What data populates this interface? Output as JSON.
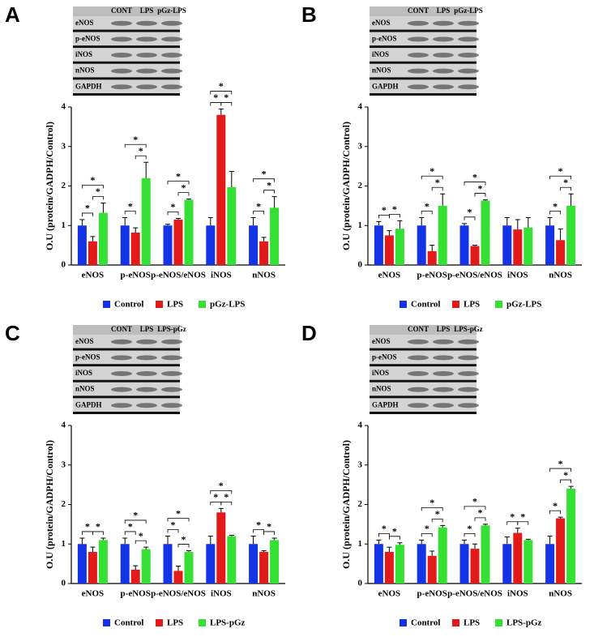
{
  "chart_data": [
    {
      "type": "bar",
      "panel": "A",
      "blot": {
        "lanes": [
          "CONT",
          "LPS",
          "pGz-LPS"
        ],
        "rows": [
          "eNOS",
          "p-eNOS",
          "iNOS",
          "nNOS",
          "GAPDH"
        ]
      },
      "ylabel": "O.U (protein/GADPH/Control)",
      "categories": [
        "eNOS",
        "p-eNOS",
        "p-eNOS/eNOS",
        "iNOS",
        "nNOS"
      ],
      "ylim": [
        0,
        4
      ],
      "yticks": [
        0,
        1,
        2,
        3,
        4
      ],
      "series": [
        {
          "name": "Control",
          "color": "#1533e6",
          "values": [
            1.0,
            1.0,
            1.0,
            1.0,
            1.0
          ],
          "errors": [
            0.15,
            0.2,
            0.03,
            0.2,
            0.2
          ]
        },
        {
          "name": "LPS",
          "color": "#e31a1a",
          "values": [
            0.6,
            0.82,
            1.15,
            3.8,
            0.6
          ],
          "errors": [
            0.12,
            0.12,
            0.03,
            0.15,
            0.1
          ]
        },
        {
          "name": "pGz-LPS",
          "color": "#35e035",
          "values": [
            1.32,
            2.2,
            1.65,
            1.97,
            1.45
          ],
          "errors": [
            0.25,
            0.4,
            0.02,
            0.4,
            0.28
          ]
        }
      ],
      "significance": [
        {
          "category": "eNOS",
          "pair": [
            "Control",
            "LPS"
          ],
          "label": "*"
        },
        {
          "category": "eNOS",
          "pair": [
            "LPS",
            "pGz-LPS"
          ],
          "label": "*"
        },
        {
          "category": "eNOS",
          "pair": [
            "Control",
            "pGz-LPS"
          ],
          "label": "*"
        },
        {
          "category": "p-eNOS",
          "pair": [
            "Control",
            "LPS"
          ],
          "label": "*"
        },
        {
          "category": "p-eNOS",
          "pair": [
            "LPS",
            "pGz-LPS"
          ],
          "label": "*"
        },
        {
          "category": "p-eNOS",
          "pair": [
            "Control",
            "pGz-LPS"
          ],
          "label": "*"
        },
        {
          "category": "p-eNOS/eNOS",
          "pair": [
            "Control",
            "LPS"
          ],
          "label": "*"
        },
        {
          "category": "p-eNOS/eNOS",
          "pair": [
            "LPS",
            "pGz-LPS"
          ],
          "label": "*"
        },
        {
          "category": "p-eNOS/eNOS",
          "pair": [
            "Control",
            "pGz-LPS"
          ],
          "label": "*"
        },
        {
          "category": "iNOS",
          "pair": [
            "Control",
            "LPS"
          ],
          "label": "*"
        },
        {
          "category": "iNOS",
          "pair": [
            "LPS",
            "pGz-LPS"
          ],
          "label": "*"
        },
        {
          "category": "iNOS",
          "pair": [
            "Control",
            "pGz-LPS"
          ],
          "label": "*"
        },
        {
          "category": "nNOS",
          "pair": [
            "Control",
            "LPS"
          ],
          "label": "*"
        },
        {
          "category": "nNOS",
          "pair": [
            "LPS",
            "pGz-LPS"
          ],
          "label": "*"
        },
        {
          "category": "nNOS",
          "pair": [
            "Control",
            "pGz-LPS"
          ],
          "label": "*"
        }
      ]
    },
    {
      "type": "bar",
      "panel": "B",
      "blot": {
        "lanes": [
          "CONT",
          "LPS",
          "pGz-LPS"
        ],
        "rows": [
          "eNOS",
          "p-eNOS",
          "iNOS",
          "nNOS",
          "GAPDH"
        ]
      },
      "ylabel": "O.U (protein/GADPH/Control)",
      "categories": [
        "eNOS",
        "p-eNOS",
        "p-eNOS/eNOS",
        "iNOS",
        "nNOS"
      ],
      "ylim": [
        0,
        4
      ],
      "yticks": [
        0,
        1,
        2,
        3,
        4
      ],
      "series": [
        {
          "name": "Control",
          "color": "#1533e6",
          "values": [
            1.0,
            1.0,
            1.0,
            1.0,
            1.0
          ],
          "errors": [
            0.1,
            0.2,
            0.05,
            0.2,
            0.2
          ]
        },
        {
          "name": "LPS",
          "color": "#e31a1a",
          "values": [
            0.75,
            0.35,
            0.48,
            0.9,
            0.63
          ],
          "errors": [
            0.12,
            0.15,
            0.02,
            0.25,
            0.28
          ]
        },
        {
          "name": "pGz-LPS",
          "color": "#35e035",
          "values": [
            0.92,
            1.5,
            1.63,
            0.95,
            1.5
          ],
          "errors": [
            0.2,
            0.3,
            0.02,
            0.25,
            0.3
          ]
        }
      ],
      "significance": [
        {
          "category": "eNOS",
          "pair": [
            "Control",
            "LPS"
          ],
          "label": "*"
        },
        {
          "category": "eNOS",
          "pair": [
            "LPS",
            "pGz-LPS"
          ],
          "label": "*"
        },
        {
          "category": "p-eNOS",
          "pair": [
            "Control",
            "LPS"
          ],
          "label": "*"
        },
        {
          "category": "p-eNOS",
          "pair": [
            "LPS",
            "pGz-LPS"
          ],
          "label": "*"
        },
        {
          "category": "p-eNOS",
          "pair": [
            "Control",
            "pGz-LPS"
          ],
          "label": "*"
        },
        {
          "category": "p-eNOS/eNOS",
          "pair": [
            "Control",
            "LPS"
          ],
          "label": "*"
        },
        {
          "category": "p-eNOS/eNOS",
          "pair": [
            "LPS",
            "pGz-LPS"
          ],
          "label": "*"
        },
        {
          "category": "p-eNOS/eNOS",
          "pair": [
            "Control",
            "pGz-LPS"
          ],
          "label": "*"
        },
        {
          "category": "nNOS",
          "pair": [
            "Control",
            "LPS"
          ],
          "label": "*"
        },
        {
          "category": "nNOS",
          "pair": [
            "LPS",
            "pGz-LPS"
          ],
          "label": "*"
        },
        {
          "category": "nNOS",
          "pair": [
            "Control",
            "pGz-LPS"
          ],
          "label": "*"
        }
      ]
    },
    {
      "type": "bar",
      "panel": "C",
      "blot": {
        "lanes": [
          "CONT",
          "LPS",
          "LPS-pGz"
        ],
        "rows": [
          "eNOS",
          "p-eNOS",
          "iNOS",
          "nNOS",
          "GAPDH"
        ]
      },
      "ylabel": "O.U (protein/GADPH/Control)",
      "categories": [
        "eNOS",
        "p-eNOS",
        "p-eNOS/eNOS",
        "iNOS",
        "nNOS"
      ],
      "ylim": [
        0,
        4
      ],
      "yticks": [
        0,
        1,
        2,
        3,
        4
      ],
      "series": [
        {
          "name": "Control",
          "color": "#1533e6",
          "values": [
            1.0,
            1.0,
            1.0,
            1.0,
            1.0
          ],
          "errors": [
            0.15,
            0.15,
            0.2,
            0.2,
            0.2
          ]
        },
        {
          "name": "LPS",
          "color": "#e31a1a",
          "values": [
            0.8,
            0.35,
            0.32,
            1.8,
            0.8
          ],
          "errors": [
            0.12,
            0.1,
            0.12,
            0.1,
            0.03
          ]
        },
        {
          "name": "LPS-pGz",
          "color": "#35e035",
          "values": [
            1.1,
            0.87,
            0.8,
            1.2,
            1.1
          ],
          "errors": [
            0.05,
            0.05,
            0.03,
            0.02,
            0.05
          ]
        }
      ],
      "significance": [
        {
          "category": "eNOS",
          "pair": [
            "Control",
            "LPS"
          ],
          "label": "*"
        },
        {
          "category": "eNOS",
          "pair": [
            "LPS",
            "LPS-pGz"
          ],
          "label": "*"
        },
        {
          "category": "p-eNOS",
          "pair": [
            "Control",
            "LPS"
          ],
          "label": "*"
        },
        {
          "category": "p-eNOS",
          "pair": [
            "LPS",
            "LPS-pGz"
          ],
          "label": "*"
        },
        {
          "category": "p-eNOS",
          "pair": [
            "Control",
            "LPS-pGz"
          ],
          "label": "*"
        },
        {
          "category": "p-eNOS/eNOS",
          "pair": [
            "Control",
            "LPS"
          ],
          "label": "*"
        },
        {
          "category": "p-eNOS/eNOS",
          "pair": [
            "LPS",
            "LPS-pGz"
          ],
          "label": "*"
        },
        {
          "category": "p-eNOS/eNOS",
          "pair": [
            "Control",
            "LPS-pGz"
          ],
          "label": "*"
        },
        {
          "category": "iNOS",
          "pair": [
            "Control",
            "LPS"
          ],
          "label": "*"
        },
        {
          "category": "iNOS",
          "pair": [
            "LPS",
            "LPS-pGz"
          ],
          "label": "*"
        },
        {
          "category": "iNOS",
          "pair": [
            "Control",
            "LPS-pGz"
          ],
          "label": "*"
        },
        {
          "category": "nNOS",
          "pair": [
            "Control",
            "LPS"
          ],
          "label": "*"
        },
        {
          "category": "nNOS",
          "pair": [
            "LPS",
            "LPS-pGz"
          ],
          "label": "*"
        }
      ]
    },
    {
      "type": "bar",
      "panel": "D",
      "blot": {
        "lanes": [
          "CONT",
          "LPS",
          "LPS-pGz"
        ],
        "rows": [
          "eNOS",
          "p-eNOS",
          "iNOS",
          "nNOS",
          "GAPDH"
        ]
      },
      "ylabel": "O.U (protein/GADPH/Control)",
      "categories": [
        "eNOS",
        "p-eNOS",
        "p-eNOS/eNOS",
        "iNOS",
        "nNOS"
      ],
      "ylim": [
        0,
        4
      ],
      "yticks": [
        0,
        1,
        2,
        3,
        4
      ],
      "series": [
        {
          "name": "Control",
          "color": "#1533e6",
          "values": [
            1.0,
            1.0,
            1.0,
            1.0,
            1.0
          ],
          "errors": [
            0.1,
            0.1,
            0.1,
            0.18,
            0.2
          ]
        },
        {
          "name": "LPS",
          "color": "#e31a1a",
          "values": [
            0.8,
            0.7,
            0.88,
            1.28,
            1.65
          ],
          "errors": [
            0.12,
            0.12,
            0.12,
            0.12,
            0.03
          ]
        },
        {
          "name": "LPS-pGz",
          "color": "#35e035",
          "values": [
            0.98,
            1.42,
            1.47,
            1.1,
            2.4
          ],
          "errors": [
            0.05,
            0.05,
            0.03,
            0.02,
            0.06
          ]
        }
      ],
      "significance": [
        {
          "category": "eNOS",
          "pair": [
            "Control",
            "LPS"
          ],
          "label": "*"
        },
        {
          "category": "eNOS",
          "pair": [
            "LPS",
            "LPS-pGz"
          ],
          "label": "*"
        },
        {
          "category": "p-eNOS",
          "pair": [
            "Control",
            "LPS"
          ],
          "label": "*"
        },
        {
          "category": "p-eNOS",
          "pair": [
            "LPS",
            "LPS-pGz"
          ],
          "label": "*"
        },
        {
          "category": "p-eNOS",
          "pair": [
            "Control",
            "LPS-pGz"
          ],
          "label": "*"
        },
        {
          "category": "p-eNOS/eNOS",
          "pair": [
            "Control",
            "LPS"
          ],
          "label": "*"
        },
        {
          "category": "p-eNOS/eNOS",
          "pair": [
            "LPS",
            "LPS-pGz"
          ],
          "label": "*"
        },
        {
          "category": "p-eNOS/eNOS",
          "pair": [
            "Control",
            "LPS-pGz"
          ],
          "label": "*"
        },
        {
          "category": "iNOS",
          "pair": [
            "Control",
            "LPS"
          ],
          "label": "*"
        },
        {
          "category": "iNOS",
          "pair": [
            "LPS",
            "LPS-pGz"
          ],
          "label": "*"
        },
        {
          "category": "nNOS",
          "pair": [
            "Control",
            "LPS"
          ],
          "label": "*"
        },
        {
          "category": "nNOS",
          "pair": [
            "LPS",
            "LPS-pGz"
          ],
          "label": "*"
        },
        {
          "category": "nNOS",
          "pair": [
            "Control",
            "LPS-pGz"
          ],
          "label": "*"
        }
      ]
    }
  ]
}
